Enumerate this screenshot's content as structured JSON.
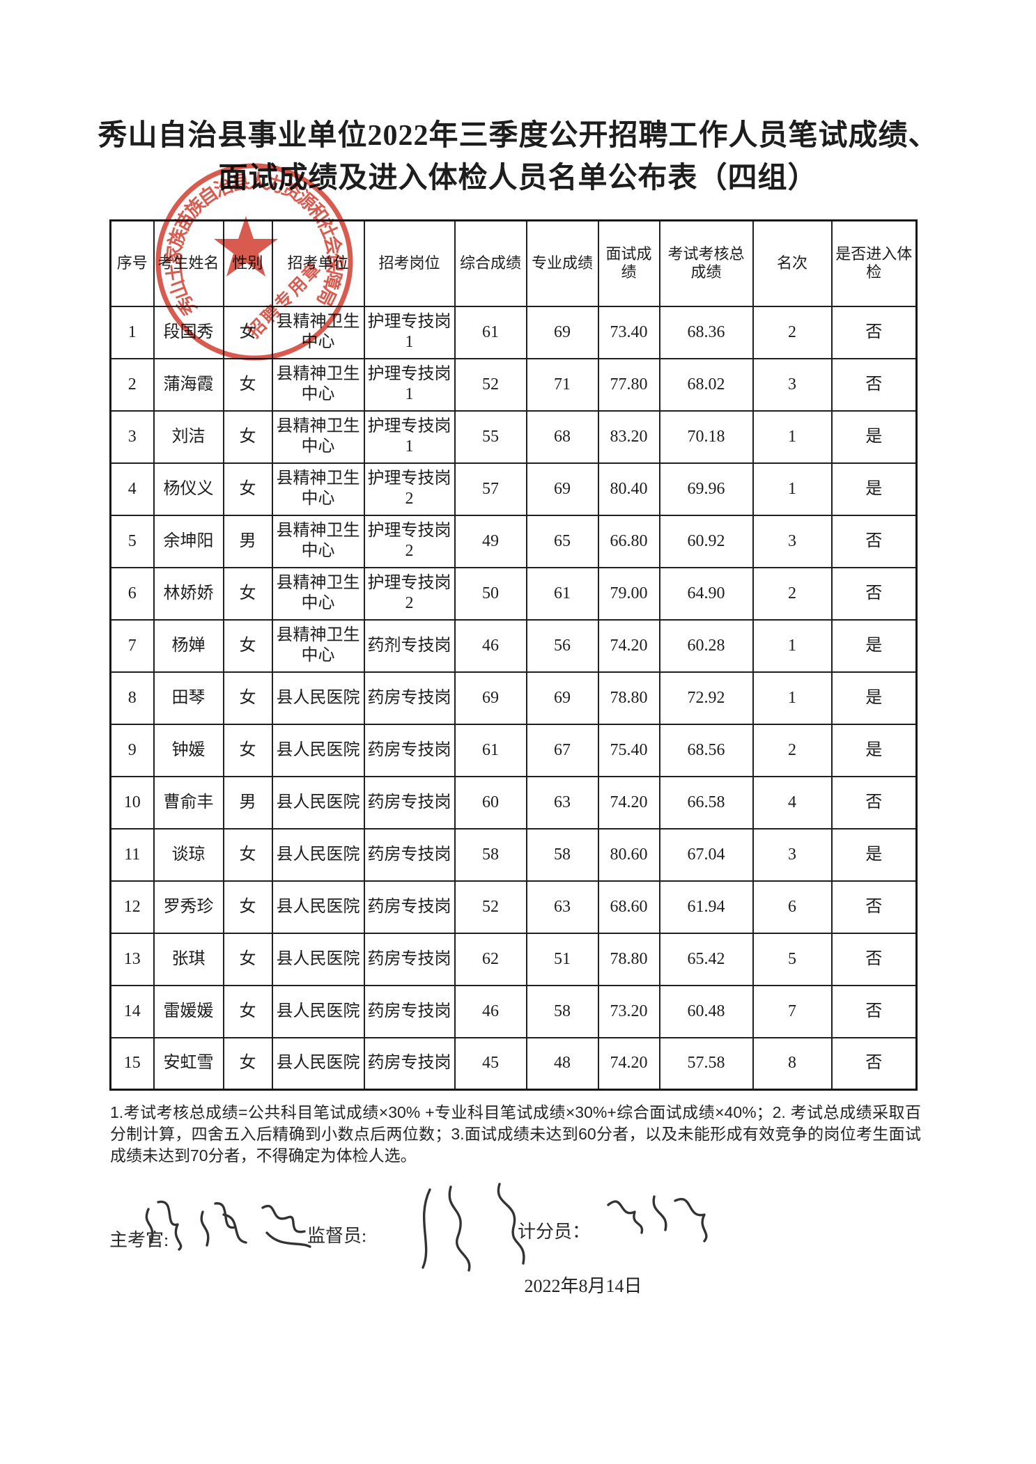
{
  "page": {
    "title_line1": "秀山自治县事业单位2022年三季度公开招聘工作人员笔试成绩、",
    "title_line2": "面试成绩及进入体检人员名单公布表（四组）",
    "date": "2022年8月14日",
    "ink_color": "#1d1d1d",
    "seal_color": "#d23b2e"
  },
  "stamp": {
    "arc_text": "秀山土家族苗族自治县人力资源和社会保障局",
    "inner_text": "招聘专用章",
    "star_icon": "red-star"
  },
  "table": {
    "headers": [
      "序号",
      "考生姓名",
      "性别",
      "招考单位",
      "招考岗位",
      "综合成绩",
      "专业成绩",
      "面试成绩",
      "考试考核总成绩",
      "名次",
      "是否进入体检"
    ],
    "column_keys": [
      "index",
      "candidate-name",
      "gender",
      "recruiting-unit",
      "recruiting-position",
      "comprehensive-score",
      "professional-score",
      "interview-score",
      "total-assessment-score",
      "rank",
      "enter-physical-exam"
    ],
    "rows": [
      [
        "1",
        "段国秀",
        "女",
        "县精神卫生中心",
        "护理专技岗1",
        "61",
        "69",
        "73.40",
        "68.36",
        "2",
        "否"
      ],
      [
        "2",
        "蒲海霞",
        "女",
        "县精神卫生中心",
        "护理专技岗1",
        "52",
        "71",
        "77.80",
        "68.02",
        "3",
        "否"
      ],
      [
        "3",
        "刘洁",
        "女",
        "县精神卫生中心",
        "护理专技岗1",
        "55",
        "68",
        "83.20",
        "70.18",
        "1",
        "是"
      ],
      [
        "4",
        "杨仪义",
        "女",
        "县精神卫生中心",
        "护理专技岗2",
        "57",
        "69",
        "80.40",
        "69.96",
        "1",
        "是"
      ],
      [
        "5",
        "余坤阳",
        "男",
        "县精神卫生中心",
        "护理专技岗2",
        "49",
        "65",
        "66.80",
        "60.92",
        "3",
        "否"
      ],
      [
        "6",
        "林娇娇",
        "女",
        "县精神卫生中心",
        "护理专技岗2",
        "50",
        "61",
        "79.00",
        "64.90",
        "2",
        "否"
      ],
      [
        "7",
        "杨婵",
        "女",
        "县精神卫生中心",
        "药剂专技岗",
        "46",
        "56",
        "74.20",
        "60.28",
        "1",
        "是"
      ],
      [
        "8",
        "田琴",
        "女",
        "县人民医院",
        "药房专技岗",
        "69",
        "69",
        "78.80",
        "72.92",
        "1",
        "是"
      ],
      [
        "9",
        "钟媛",
        "女",
        "县人民医院",
        "药房专技岗",
        "61",
        "67",
        "75.40",
        "68.56",
        "2",
        "是"
      ],
      [
        "10",
        "曹俞丰",
        "男",
        "县人民医院",
        "药房专技岗",
        "60",
        "63",
        "74.20",
        "66.58",
        "4",
        "否"
      ],
      [
        "11",
        "谈琼",
        "女",
        "县人民医院",
        "药房专技岗",
        "58",
        "58",
        "80.60",
        "67.04",
        "3",
        "是"
      ],
      [
        "12",
        "罗秀珍",
        "女",
        "县人民医院",
        "药房专技岗",
        "52",
        "63",
        "68.60",
        "61.94",
        "6",
        "否"
      ],
      [
        "13",
        "张琪",
        "女",
        "县人民医院",
        "药房专技岗",
        "62",
        "51",
        "78.80",
        "65.42",
        "5",
        "否"
      ],
      [
        "14",
        "雷媛媛",
        "女",
        "县人民医院",
        "药房专技岗",
        "46",
        "58",
        "73.20",
        "60.48",
        "7",
        "否"
      ],
      [
        "15",
        "安虹雪",
        "女",
        "县人民医院",
        "药房专技岗",
        "45",
        "48",
        "74.20",
        "57.58",
        "8",
        "否"
      ]
    ]
  },
  "notes": {
    "text": "1.考试考核总成绩=公共科目笔试成绩×30% +专业科目笔试成绩×30%+综合面试成绩×40%；2. 考试总成绩采取百分制计算，四舍五入后精确到小数点后两位数；3.面试成绩未达到60分者，以及未能形成有效竞争的岗位考生面试成绩未达到70分者，不得确定为体检人选。"
  },
  "signatures": {
    "chief_examiner_label": "主考官:",
    "supervisor_label": "监督员:",
    "scorer_label": "计分员："
  }
}
